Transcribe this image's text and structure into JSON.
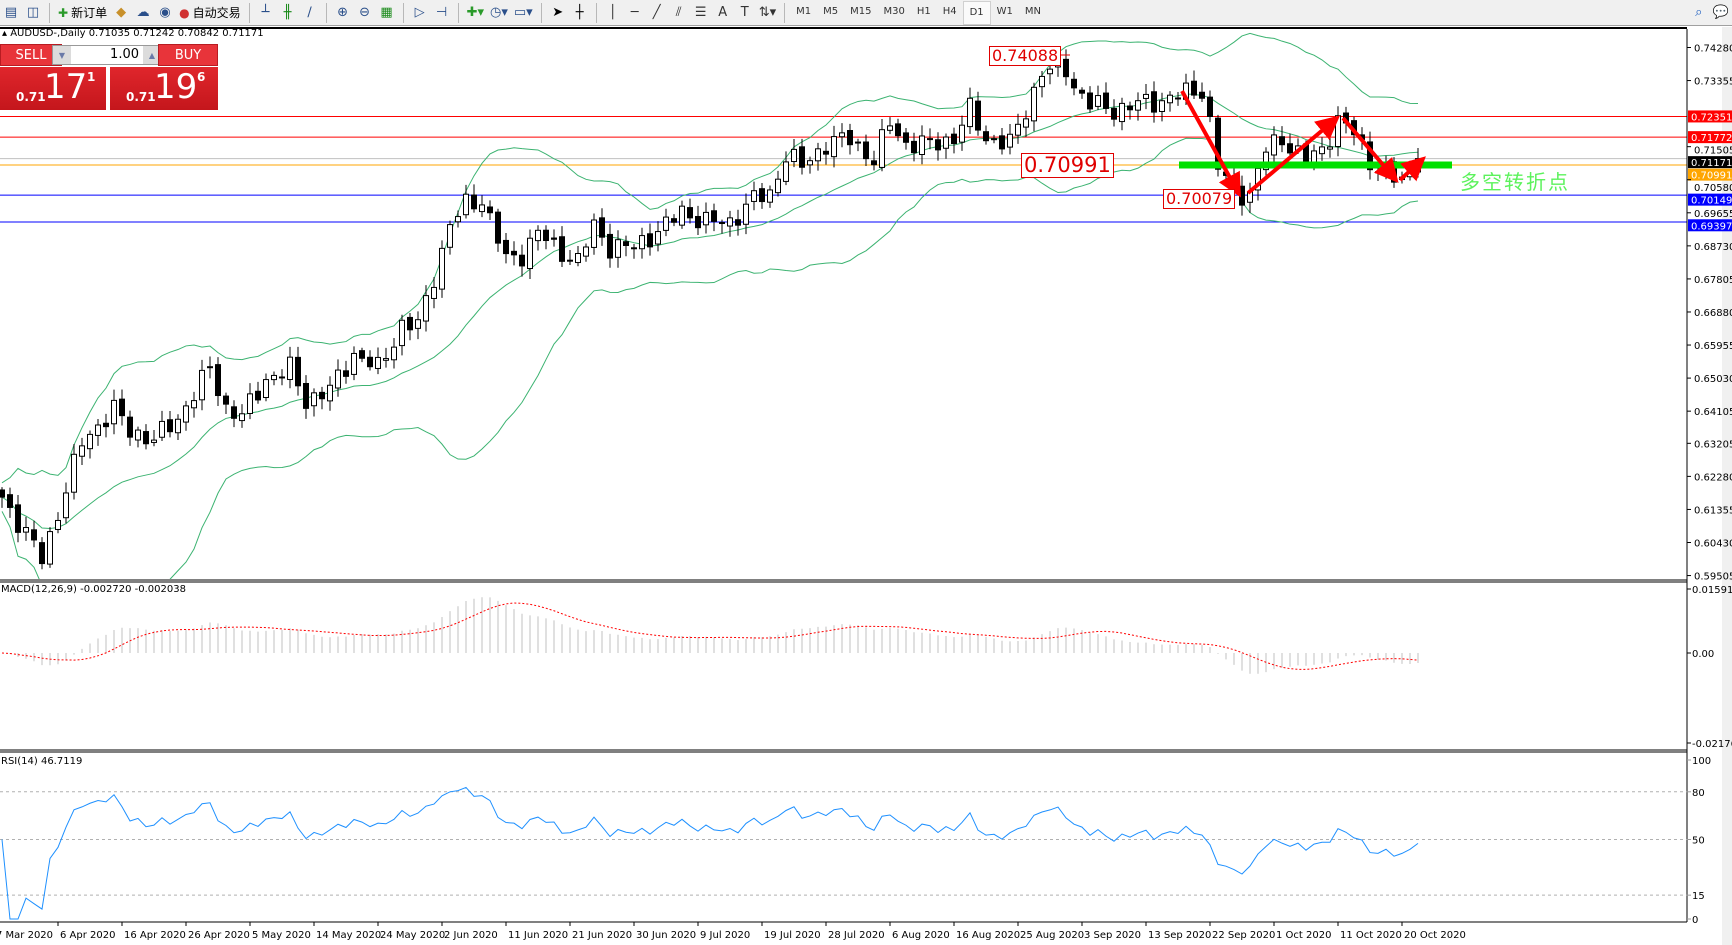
{
  "toolbar": {
    "new_order": "新订单",
    "auto_trading": "自动交易",
    "timeframes": [
      "M1",
      "M5",
      "M15",
      "M30",
      "H1",
      "H4",
      "D1",
      "W1",
      "MN"
    ],
    "active_timeframe": "D1"
  },
  "chart": {
    "symbol_info": "AUDUSD-,Daily  0.71035 0.71242 0.70842 0.71171",
    "trade_panel": {
      "sell_label": "SELL",
      "buy_label": "BUY",
      "lot": "1.00",
      "sell_prefix": "0.71",
      "sell_big": "17",
      "sell_sup": "1",
      "buy_prefix": "0.71",
      "buy_big": "19",
      "buy_sup": "6"
    },
    "annotations": {
      "high_label": "0.74088",
      "pivot_label": "0.70991",
      "low_label": "0.70079",
      "cn_text": "多空转折点"
    },
    "colors": {
      "bollinger": "#3cb371",
      "annotation_red": "#e00000",
      "pivot_bar": "#00e000",
      "macd_hist": "#c0c0c0",
      "macd_signal": "#ff0000",
      "rsi": "#1e90ff"
    }
  },
  "chart_data": {
    "type": "candlestick",
    "symbol": "AUDUSD-",
    "timeframe": "Daily",
    "price_ticks": [
      "0.74280",
      "0.73355",
      "0.71505",
      "0.70580",
      "0.69655",
      "0.68730",
      "0.67805",
      "0.66880",
      "0.65955",
      "0.65030",
      "0.64105",
      "0.63205",
      "0.62280",
      "0.61355",
      "0.60430",
      "0.59505"
    ],
    "price_range": [
      0.59505,
      0.7428
    ],
    "horizontal_lines": [
      {
        "price": "0.72351",
        "color": "#ff0000"
      },
      {
        "price": "0.71772",
        "color": "#ff0000"
      },
      {
        "price": "0.71171",
        "color": "#000000",
        "line": "#c0c0c0"
      },
      {
        "price": "0.70991",
        "color": "#ffa500"
      },
      {
        "price": "0.70149",
        "color": "#0000ff"
      },
      {
        "price": "0.69397",
        "color": "#0000ff"
      }
    ],
    "close_keypoints_by_bar": [
      [
        0,
        0.617
      ],
      [
        5,
        0.5999
      ],
      [
        7,
        0.6124
      ],
      [
        10,
        0.6324
      ],
      [
        14,
        0.6416
      ],
      [
        16,
        0.6356
      ],
      [
        19,
        0.633
      ],
      [
        22,
        0.639
      ],
      [
        26,
        0.653
      ],
      [
        28,
        0.642
      ],
      [
        30,
        0.6396
      ],
      [
        33,
        0.65
      ],
      [
        36,
        0.653
      ],
      [
        38,
        0.644
      ],
      [
        41,
        0.647
      ],
      [
        44,
        0.657
      ],
      [
        47,
        0.653
      ],
      [
        50,
        0.665
      ],
      [
        52,
        0.665
      ],
      [
        54,
        0.6789
      ],
      [
        56,
        0.6929
      ],
      [
        58,
        0.699
      ],
      [
        60,
        0.7004
      ],
      [
        63,
        0.6834
      ],
      [
        65,
        0.685
      ],
      [
        67,
        0.6912
      ],
      [
        69,
        0.6869
      ],
      [
        72,
        0.683
      ],
      [
        74,
        0.6929
      ],
      [
        76,
        0.687
      ],
      [
        79,
        0.687
      ],
      [
        83,
        0.693
      ],
      [
        85,
        0.697
      ],
      [
        88,
        0.694
      ],
      [
        91,
        0.694
      ],
      [
        94,
        0.7004
      ],
      [
        96,
        0.7018
      ],
      [
        98,
        0.7127
      ],
      [
        100,
        0.7096
      ],
      [
        103,
        0.7158
      ],
      [
        106,
        0.7174
      ],
      [
        109,
        0.7111
      ],
      [
        111,
        0.7218
      ],
      [
        113,
        0.7158
      ],
      [
        116,
        0.7158
      ],
      [
        119,
        0.7174
      ],
      [
        121,
        0.7253
      ],
      [
        123,
        0.7174
      ],
      [
        126,
        0.7158
      ],
      [
        128,
        0.7253
      ],
      [
        130,
        0.736
      ],
      [
        133,
        0.737
      ],
      [
        134,
        0.732
      ],
      [
        136,
        0.727
      ],
      [
        139,
        0.7253
      ],
      [
        142,
        0.727
      ],
      [
        145,
        0.728
      ],
      [
        147,
        0.7295
      ],
      [
        150,
        0.731
      ],
      [
        151,
        0.7218
      ],
      [
        152,
        0.7096
      ],
      [
        154,
        0.702
      ],
      [
        156,
        0.702
      ],
      [
        158,
        0.7142
      ],
      [
        160,
        0.7174
      ],
      [
        163,
        0.711
      ],
      [
        165,
        0.7142
      ],
      [
        167,
        0.7225
      ],
      [
        169,
        0.719
      ],
      [
        171,
        0.711
      ],
      [
        174,
        0.706
      ],
      [
        175,
        0.7054
      ],
      [
        177,
        0.71171
      ]
    ],
    "date_labels": [
      "7 Mar 2020",
      "6 Apr 2020",
      "16 Apr 2020",
      "26 Apr 2020",
      "5 May 2020",
      "14 May 2020",
      "24 May 2020",
      "2 Jun 2020",
      "11 Jun 2020",
      "21 Jun 2020",
      "30 Jun 2020",
      "9 Jul 2020",
      "19 Jul 2020",
      "28 Jul 2020",
      "6 Aug 2020",
      "16 Aug 2020",
      "25 Aug 2020",
      "3 Sep 2020",
      "13 Sep 2020",
      "22 Sep 2020",
      "1 Oct 2020",
      "11 Oct 2020",
      "20 Oct 2020"
    ],
    "indicators": {
      "bollinger": "20, 2",
      "macd": {
        "label": "MACD(12,26,9) -0.002720 -0.002038",
        "ticks": [
          "0.015912",
          "0.00",
          "-0.021768"
        ],
        "range": [
          -0.021768,
          0.015912
        ]
      },
      "rsi": {
        "label": "RSI(14) 46.7119",
        "ticks": [
          "100",
          "80",
          "50",
          "15",
          "0"
        ],
        "levels": [
          80,
          50,
          15
        ]
      }
    }
  }
}
